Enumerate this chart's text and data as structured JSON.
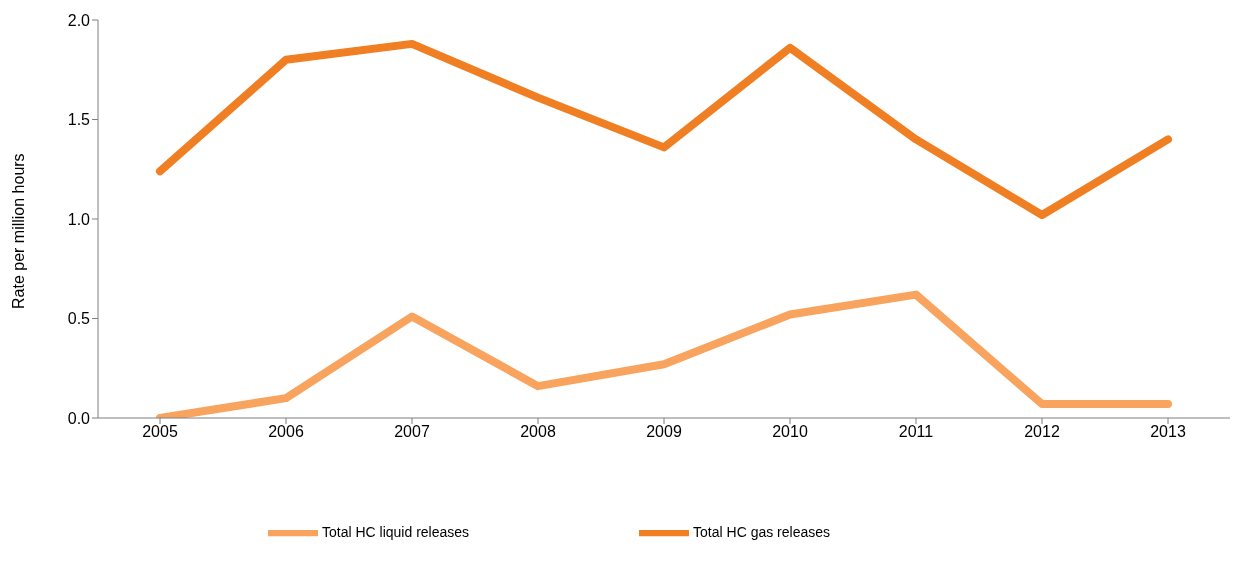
{
  "chart_data": {
    "type": "line",
    "ylabel": "Rate per million hours",
    "categories": [
      "2005",
      "2006",
      "2007",
      "2008",
      "2009",
      "2010",
      "2011",
      "2012",
      "2013"
    ],
    "series": [
      {
        "name": "Total HC liquid releases",
        "color": "#f8a35e",
        "values": [
          0.0,
          0.1,
          0.51,
          0.16,
          0.27,
          0.52,
          0.62,
          0.07,
          0.07
        ]
      },
      {
        "name": "Total HC gas releases",
        "color": "#f07f24",
        "values": [
          1.24,
          1.8,
          1.88,
          1.61,
          1.36,
          1.86,
          1.4,
          1.02,
          1.4
        ]
      }
    ],
    "ylim": [
      0,
      2
    ],
    "yticks": [
      {
        "value": 0,
        "label": "0.0"
      },
      {
        "value": 0.5,
        "label": "0.5"
      },
      {
        "value": 1,
        "label": "1.0"
      },
      {
        "value": 1.5,
        "label": "1.5"
      },
      {
        "value": 2,
        "label": "2.0"
      }
    ],
    "grid": false,
    "legend": "bottom",
    "marker": "none",
    "line_style": "solid"
  }
}
